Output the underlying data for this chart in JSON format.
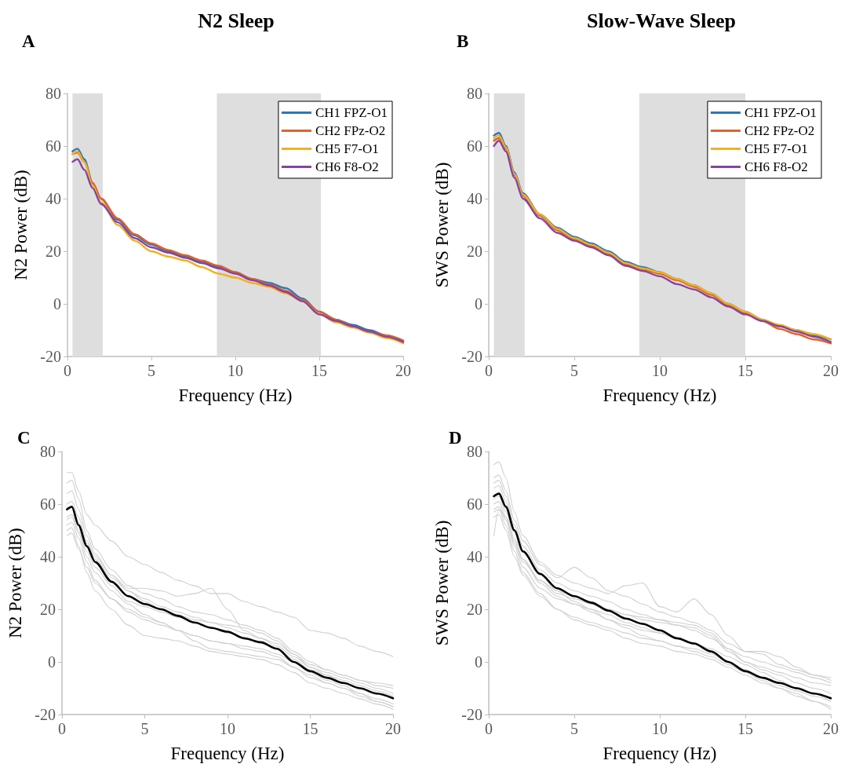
{
  "chart_data": [
    {
      "type": "line",
      "title": "N2 Sleep",
      "annotations": [
        "A"
      ],
      "xlabel": "Frequency (Hz)",
      "ylabel": "N2 Power (dB)",
      "xlim": [
        0,
        20
      ],
      "xticks": [
        0,
        5,
        10,
        15,
        20
      ],
      "ylim": [
        -20,
        80
      ],
      "yticks": [
        -20,
        0,
        20,
        40,
        60,
        80
      ],
      "grid": false,
      "legend": "top right",
      "marker": "none",
      "line_style": "solid",
      "x": [
        0.3,
        0.6,
        1,
        1.5,
        2,
        3,
        4,
        5,
        6,
        7,
        8,
        9,
        10,
        11,
        12,
        13,
        14,
        15,
        16,
        17,
        18,
        19,
        20
      ],
      "bands": [
        {
          "axis": "x",
          "from": 0.3,
          "to": 2.1,
          "color": "#dedede"
        },
        {
          "axis": "x",
          "from": 8.9,
          "to": 15.1,
          "color": "#dedede"
        }
      ],
      "series": [
        {
          "name": "CH1 FPZ-O1",
          "color": "#2e75b6",
          "values": [
            58,
            59,
            55,
            46,
            40,
            32,
            26,
            22.5,
            20,
            18,
            16,
            14,
            12,
            9.5,
            8,
            6,
            2,
            -3,
            -6,
            -8,
            -10,
            -12,
            -14
          ]
        },
        {
          "name": "CH2 FPz-O2",
          "color": "#e0622a",
          "values": [
            57,
            57.5,
            54,
            46,
            40,
            32.5,
            26.5,
            23,
            20.5,
            18.5,
            16.5,
            14.5,
            12,
            9.5,
            7.5,
            5,
            1.5,
            -3,
            -6,
            -8.5,
            -10.5,
            -12,
            -14
          ]
        },
        {
          "name": "CH5 F7-O1",
          "color": "#f2b01e",
          "values": [
            57,
            58,
            54,
            45,
            38.5,
            30,
            24,
            20,
            18,
            16.5,
            14,
            11.5,
            10,
            8,
            6.5,
            4,
            1,
            -4,
            -7,
            -9,
            -11,
            -13,
            -15
          ]
        },
        {
          "name": "CH6 F8-O2",
          "color": "#8545a0",
          "values": [
            54,
            55,
            51,
            44,
            38,
            31,
            25,
            21.5,
            19.5,
            17.5,
            15.5,
            13.5,
            11.5,
            9,
            7,
            4.5,
            1,
            -4,
            -6.5,
            -8.5,
            -10.5,
            -12.5,
            -14.5
          ]
        }
      ]
    },
    {
      "type": "line",
      "title": "Slow-Wave Sleep",
      "annotations": [
        "B"
      ],
      "xlabel": "Frequency (Hz)",
      "ylabel": "SWS Power (dB)",
      "xlim": [
        0,
        20
      ],
      "xticks": [
        0,
        5,
        10,
        15,
        20
      ],
      "ylim": [
        -20,
        80
      ],
      "yticks": [
        -20,
        0,
        20,
        40,
        60,
        80
      ],
      "grid": false,
      "legend": "top right",
      "marker": "none",
      "line_style": "solid",
      "x": [
        0.3,
        0.6,
        1,
        1.5,
        2,
        3,
        4,
        5,
        6,
        7,
        8,
        9,
        10,
        11,
        12,
        13,
        14,
        15,
        16,
        17,
        18,
        19,
        20
      ],
      "bands": [
        {
          "axis": "x",
          "from": 0.3,
          "to": 2.1,
          "color": "#dedede"
        },
        {
          "axis": "x",
          "from": 8.8,
          "to": 15,
          "color": "#dedede"
        }
      ],
      "series": [
        {
          "name": "CH1 FPZ-O1",
          "color": "#2e75b6",
          "values": [
            64,
            65,
            60,
            50,
            42,
            34,
            29,
            25.5,
            23,
            20,
            16,
            14,
            12,
            9.5,
            7,
            4,
            0,
            -3,
            -6,
            -8.5,
            -10,
            -12,
            -13.5
          ]
        },
        {
          "name": "CH2 FPz-O2",
          "color": "#e0622a",
          "values": [
            62,
            63,
            59,
            49,
            41,
            33.5,
            28,
            24.5,
            22,
            19,
            15,
            13,
            11.5,
            9,
            6.5,
            3.5,
            -0.5,
            -3.5,
            -6.5,
            -9.5,
            -11.5,
            -13.5,
            -15
          ]
        },
        {
          "name": "CH5 F7-O1",
          "color": "#f2b01e",
          "values": [
            63,
            64,
            59.5,
            49.5,
            41.5,
            34,
            28.5,
            25,
            22.5,
            19.5,
            15.5,
            13.5,
            12,
            9.5,
            7,
            4,
            0,
            -3,
            -6,
            -8,
            -10,
            -11.5,
            -13.5
          ]
        },
        {
          "name": "CH6 F8-O2",
          "color": "#8545a0",
          "values": [
            60,
            62,
            58,
            48,
            40,
            32.5,
            27,
            24,
            21.5,
            18.5,
            14.5,
            12.5,
            10.5,
            7.5,
            5.5,
            2.5,
            -1,
            -4,
            -6.5,
            -8.5,
            -10.5,
            -12.5,
            -14.5
          ]
        }
      ]
    },
    {
      "type": "line",
      "annotations": [
        "C"
      ],
      "xlabel": "Frequency (Hz)",
      "ylabel": "N2 Power (dB)",
      "xlim": [
        0,
        20
      ],
      "xticks": [
        0,
        5,
        10,
        15,
        20
      ],
      "ylim": [
        -20,
        80
      ],
      "yticks": [
        -20,
        0,
        20,
        40,
        60,
        80
      ],
      "grid": false,
      "marker": "none",
      "line_style": "solid",
      "x": [
        0.3,
        0.6,
        1,
        1.5,
        2,
        3,
        4,
        5,
        6,
        7,
        8,
        9,
        10,
        11,
        12,
        13,
        14,
        15,
        16,
        17,
        18,
        19,
        20
      ],
      "series": [
        {
          "color": "#cfcfcf",
          "values": [
            72,
            72,
            65,
            56,
            52,
            46,
            40,
            37,
            34,
            31,
            29,
            26,
            26,
            23,
            21,
            19,
            17,
            12,
            11,
            9,
            6,
            4,
            2
          ]
        },
        {
          "color": "#cfcfcf",
          "values": [
            68,
            69,
            62,
            50,
            43,
            35,
            29,
            26,
            24,
            21,
            19,
            18,
            16,
            14,
            12,
            9,
            4,
            0,
            -3,
            -5,
            -7,
            -9,
            -10
          ]
        },
        {
          "color": "#cfcfcf",
          "values": [
            60,
            61,
            55,
            46,
            40,
            33,
            28,
            28,
            27,
            25,
            26,
            28,
            20,
            12,
            9,
            6,
            2,
            -2,
            -4,
            -6,
            -8,
            -10,
            -12
          ]
        },
        {
          "color": "#cfcfcf",
          "values": [
            55,
            56,
            50,
            42,
            36,
            29,
            23,
            21,
            19,
            17,
            15,
            13,
            11,
            9,
            7,
            5,
            1,
            -3,
            -5,
            -7,
            -9,
            -11,
            -13
          ]
        },
        {
          "color": "#cfcfcf",
          "values": [
            52,
            53,
            47,
            38,
            31,
            24,
            19,
            16,
            14,
            12,
            10,
            8,
            7,
            5,
            4,
            2,
            -2,
            -6,
            -8,
            -10,
            -12,
            -14,
            -16
          ]
        },
        {
          "color": "#cfcfcf",
          "values": [
            50,
            51,
            44,
            34,
            27,
            20,
            14,
            10,
            9,
            8,
            6,
            4,
            3,
            2,
            1,
            -1,
            -4,
            -8,
            -10,
            -12,
            -14,
            -16,
            -18
          ]
        },
        {
          "color": "#cfcfcf",
          "values": [
            58,
            59,
            53,
            45,
            39,
            32,
            27,
            24,
            21,
            19,
            17,
            15,
            13,
            11,
            9,
            7,
            3,
            -1,
            -3,
            -5,
            -7,
            -8,
            -9
          ]
        },
        {
          "color": "#cfcfcf",
          "values": [
            48,
            49,
            43,
            36,
            30,
            24,
            20,
            17,
            15,
            12,
            10,
            8,
            7,
            6,
            5,
            3,
            0,
            -4,
            -7,
            -9,
            -12,
            -15,
            -17
          ]
        },
        {
          "color": "#cfcfcf",
          "values": [
            64,
            65,
            58,
            48,
            41,
            33,
            27,
            23,
            20,
            18,
            16,
            15,
            14,
            13,
            11,
            8,
            3,
            -2,
            -5,
            -8,
            -10,
            -12,
            -14
          ]
        },
        {
          "color": "#cfcfcf",
          "values": [
            54,
            55,
            49,
            40,
            34,
            27,
            22,
            18,
            15,
            12,
            8,
            5,
            4,
            3,
            2,
            1,
            -2,
            -5,
            -8,
            -10,
            -13,
            -15,
            -17
          ]
        },
        {
          "color": "#000000",
          "values": [
            58,
            59,
            52,
            44,
            38,
            30.5,
            25,
            22,
            20,
            17.5,
            15,
            13,
            11.5,
            9,
            7.5,
            5,
            0,
            -3.5,
            -6,
            -8,
            -10,
            -12,
            -13.8
          ]
        }
      ]
    },
    {
      "type": "line",
      "annotations": [
        "D"
      ],
      "xlabel": "Frequency (Hz)",
      "ylabel": "SWS Power (dB)",
      "xlim": [
        0,
        20
      ],
      "xticks": [
        0,
        5,
        10,
        15,
        20
      ],
      "ylim": [
        -20,
        80
      ],
      "yticks": [
        -20,
        0,
        20,
        40,
        60,
        80
      ],
      "grid": false,
      "marker": "none",
      "line_style": "solid",
      "x": [
        0.3,
        0.6,
        1,
        1.5,
        2,
        3,
        4,
        5,
        6,
        7,
        8,
        9,
        10,
        11,
        12,
        13,
        14,
        15,
        16,
        17,
        18,
        19,
        20
      ],
      "series": [
        {
          "color": "#cfcfcf",
          "values": [
            75,
            76,
            70,
            57,
            48,
            38,
            33,
            30,
            28,
            26,
            29,
            30,
            21,
            19,
            24,
            18,
            10,
            4,
            3,
            -1,
            -3,
            -5,
            -6
          ]
        },
        {
          "color": "#cfcfcf",
          "values": [
            70,
            71,
            65,
            54,
            46,
            37,
            32,
            36,
            32,
            27,
            25,
            22,
            19,
            17,
            15,
            12,
            7,
            4,
            4,
            2,
            -2,
            -5,
            -7
          ]
        },
        {
          "color": "#cfcfcf",
          "values": [
            60,
            61,
            55,
            46,
            39,
            31,
            26,
            24,
            22,
            20,
            18,
            17,
            16,
            15,
            14,
            11,
            5,
            0,
            -2,
            -4,
            -6,
            -8,
            -9
          ]
        },
        {
          "color": "#cfcfcf",
          "values": [
            57,
            58,
            52,
            42,
            34,
            26,
            20,
            17,
            15,
            13,
            11,
            9,
            8,
            6,
            5,
            3,
            0,
            -3,
            -6,
            -9,
            -11,
            -13,
            -15
          ]
        },
        {
          "color": "#cfcfcf",
          "values": [
            48,
            58,
            55,
            44,
            36,
            28,
            24,
            22,
            20,
            18,
            15,
            13,
            11,
            9,
            7,
            4,
            0,
            -3,
            -6,
            -8,
            -10,
            -12,
            -14
          ]
        },
        {
          "color": "#cfcfcf",
          "values": [
            66,
            67,
            61,
            50,
            42,
            33,
            27,
            23,
            20,
            16,
            13,
            10,
            8,
            6,
            4,
            2,
            -1,
            -4,
            -7,
            -10,
            -12,
            -15,
            -17
          ]
        },
        {
          "color": "#cfcfcf",
          "values": [
            62,
            63,
            57,
            47,
            39,
            30,
            25,
            22,
            19,
            16,
            14,
            12,
            11,
            9,
            7,
            5,
            2,
            -1,
            -4,
            -7,
            -10,
            -12,
            -15
          ]
        },
        {
          "color": "#cfcfcf",
          "values": [
            55,
            56,
            50,
            40,
            33,
            25,
            20,
            16,
            14,
            12,
            9,
            7,
            6,
            4,
            3,
            1,
            -2,
            -5,
            -8,
            -10,
            -13,
            -15,
            -18
          ]
        },
        {
          "color": "#cfcfcf",
          "values": [
            68,
            69,
            63,
            52,
            44,
            35,
            30,
            27,
            25,
            23,
            20,
            18,
            16,
            14,
            12,
            9,
            5,
            2,
            0,
            -2,
            -4,
            -6,
            -8
          ]
        },
        {
          "color": "#cfcfcf",
          "values": [
            58,
            59,
            54,
            45,
            38,
            31,
            27,
            25,
            23,
            20,
            18,
            16,
            15,
            14,
            13,
            10,
            4,
            0,
            -3,
            -5,
            -8,
            -10,
            -12
          ]
        },
        {
          "color": "#000000",
          "values": [
            63,
            64,
            59,
            50,
            42,
            33.5,
            28,
            25,
            22.5,
            19.5,
            16.5,
            14.5,
            12,
            9,
            7,
            4,
            0,
            -3.5,
            -6,
            -8,
            -10,
            -12,
            -13.8
          ]
        }
      ]
    }
  ]
}
